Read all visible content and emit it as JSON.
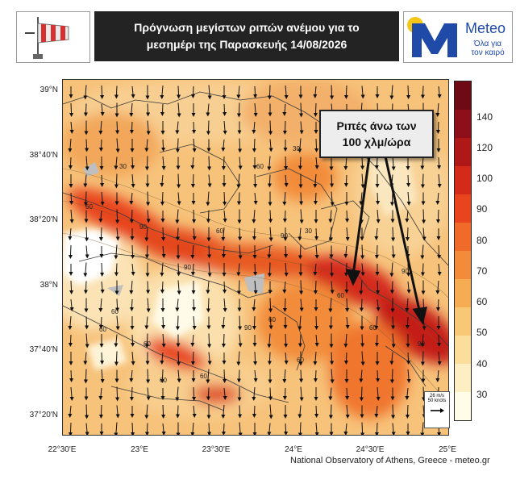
{
  "header": {
    "title_line1": "Πρόγνωση μεγίστων ριπών ανέμου για το",
    "title_line2": "μεσημέρι της Παρασκευής 14/08/2026",
    "logo_text": "Meteo",
    "logo_tagline_1": "Όλα για",
    "logo_tagline_2": "τον καιρό",
    "colors": {
      "title_bg": "#232323",
      "logo_blue": "#1f4aa8",
      "logo_sun": "#f5c518"
    }
  },
  "map": {
    "y_ticks": [
      "39°N",
      "38°40'N",
      "38°20'N",
      "38°N",
      "37°40'N",
      "37°20'N"
    ],
    "x_ticks": [
      "22°30'E",
      "23°E",
      "23°30'E",
      "24°E",
      "24°30'E",
      "25°E"
    ],
    "contour_labels": [
      "30",
      "60",
      "90",
      "30",
      "60",
      "90",
      "60",
      "90",
      "60",
      "60",
      "90",
      "60",
      "30",
      "60",
      "90",
      "90",
      "60",
      "60",
      "60",
      "60",
      "30",
      "60"
    ],
    "wind_direction": "from north"
  },
  "colorbar": {
    "ticks": [
      "140",
      "120",
      "100",
      "90",
      "80",
      "70",
      "60",
      "50",
      "40",
      "30"
    ],
    "colors": [
      "#6e0a14",
      "#8e0f1a",
      "#b01818",
      "#d42a1a",
      "#e8451f",
      "#f06a2a",
      "#f28c3a",
      "#f6ac52",
      "#f8c876",
      "#fbdd9c",
      "#fdeec4",
      "#fffde8"
    ]
  },
  "callout": {
    "line1": "Ριπές άνω των",
    "line2": "100 χλμ/ώρα"
  },
  "reference_vector": {
    "label1": "26 m/s",
    "label2": "50 knots"
  },
  "credit": "National Observatory of Athens, Greece - meteo.gr"
}
